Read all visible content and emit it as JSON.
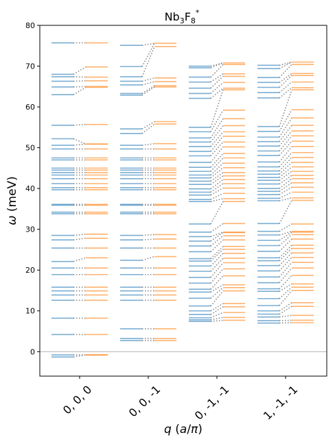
{
  "chart_data": {
    "type": "scatter",
    "title": "Nb3F8*",
    "title_parts": {
      "base": "Nb",
      "sub1": "3",
      "mid": "F",
      "sub2": "8",
      "sup": "*"
    },
    "xlabel": "q (a/π)",
    "xlabel_parts": {
      "q": "q",
      "open": " (",
      "a": "a",
      "slash": "/",
      "pi": "π",
      "close": ")"
    },
    "ylabel": "ω (meV)",
    "ylabel_parts": {
      "omega": "ω",
      "unit": " (meV)"
    },
    "ylim": [
      -6,
      80
    ],
    "yticks": [
      0,
      10,
      20,
      30,
      40,
      50,
      60,
      70,
      80
    ],
    "categories": [
      "0, 0, 0",
      "0, 0, -1",
      "0, -1, -1",
      "1, -1, -1"
    ],
    "zero_line": 0,
    "grid": false,
    "colors": {
      "left": "#1f77b4",
      "right": "#ff7f0e",
      "connector": "#888888",
      "zeroline": "#999999"
    },
    "series": [
      {
        "values": [
          -1.3,
          -0.8,
          4.2,
          8.2,
          12.6,
          13.9,
          14.9,
          15.8,
          18.9,
          20.5,
          22.1,
          25.4,
          27.4,
          28.5,
          33.8,
          34.2,
          35.9,
          36.1,
          39.7,
          40.2,
          41.2,
          42.4,
          43.3,
          43.9,
          44.5,
          45.0,
          47.0,
          47.5,
          49.7,
          50.6,
          52.2,
          55.5,
          63.0,
          64.9,
          66.3,
          67.4,
          68.0,
          75.7
        ]
      },
      {
        "values": [
          2.7,
          3.2,
          5.6,
          12.6,
          13.9,
          14.9,
          15.8,
          18.9,
          20.5,
          22.4,
          25.4,
          27.4,
          28.5,
          33.8,
          34.2,
          35.9,
          36.1,
          39.7,
          40.2,
          41.2,
          42.4,
          43.3,
          43.9,
          44.5,
          45.0,
          47.0,
          47.5,
          49.7,
          50.6,
          53.5,
          54.6,
          62.9,
          63.3,
          65.4,
          66.3,
          67.4,
          69.9,
          75.1
        ]
      },
      {
        "values": [
          7.4,
          7.8,
          8.3,
          9.1,
          10.0,
          11.2,
          13.1,
          14.6,
          15.3,
          16.8,
          18.2,
          19.7,
          21.0,
          22.2,
          22.8,
          24.5,
          25.9,
          27.1,
          28.2,
          29.3,
          31.3,
          36.8,
          37.3,
          38.4,
          39.1,
          39.9,
          41.0,
          41.8,
          42.6,
          43.3,
          44.2,
          45.2,
          46.4,
          48.0,
          49.1,
          50.3,
          51.4,
          52.4,
          53.9,
          55.0,
          62.1,
          63.3,
          64.6,
          66.1,
          67.3,
          69.6,
          70.0
        ]
      },
      {
        "values": [
          7.0,
          7.6,
          8.5,
          9.2,
          10.0,
          11.3,
          13.0,
          14.8,
          15.4,
          16.9,
          18.3,
          19.8,
          21.1,
          22.3,
          23.0,
          24.6,
          26.0,
          27.3,
          28.6,
          29.5,
          31.4,
          37.0,
          37.6,
          38.5,
          39.3,
          40.0,
          41.1,
          42.0,
          42.7,
          43.5,
          44.3,
          45.3,
          46.5,
          48.1,
          49.2,
          50.4,
          51.5,
          52.6,
          54.0,
          55.2,
          62.2,
          63.5,
          64.8,
          66.0,
          67.2,
          69.4,
          70.2
        ]
      }
    ],
    "series_right": [
      {
        "values": [
          -0.8,
          -0.8,
          4.2,
          8.2,
          12.6,
          13.9,
          14.9,
          15.8,
          18.9,
          20.5,
          23.0,
          25.4,
          27.8,
          28.8,
          33.8,
          34.2,
          35.9,
          36.1,
          39.7,
          40.2,
          41.2,
          42.4,
          43.3,
          43.9,
          44.5,
          45.0,
          47.0,
          47.5,
          49.7,
          50.9,
          50.9,
          55.7,
          64.8,
          65.0,
          66.4,
          67.3,
          69.8,
          75.7
        ]
      },
      {
        "values": [
          2.7,
          3.2,
          5.6,
          12.6,
          13.9,
          14.9,
          15.8,
          18.9,
          20.5,
          23.3,
          25.4,
          27.6,
          28.7,
          33.8,
          34.2,
          35.9,
          36.1,
          39.7,
          40.2,
          41.2,
          42.4,
          43.3,
          43.9,
          44.5,
          45.0,
          47.0,
          47.5,
          49.7,
          51.0,
          55.8,
          56.4,
          64.9,
          65.2,
          66.2,
          67.1,
          74.8,
          75.6
        ]
      },
      {
        "values": [
          7.7,
          8.4,
          9.6,
          11.0,
          11.8,
          14.9,
          15.7,
          16.4,
          18.6,
          20.3,
          21.8,
          22.9,
          24.1,
          25.1,
          25.8,
          27.4,
          28.4,
          29.2,
          29.3,
          31.4,
          36.8,
          37.5,
          38.8,
          40.1,
          41.2,
          42.2,
          43.1,
          43.9,
          45.1,
          46.2,
          47.5,
          48.6,
          50.2,
          51.4,
          52.8,
          53.9,
          55.4,
          57.1,
          59.2,
          64.2,
          64.6,
          66.0,
          67.5,
          68.1,
          70.4,
          70.8
        ]
      },
      {
        "values": [
          7.1,
          7.7,
          8.9,
          11.1,
          12.0,
          15.0,
          15.8,
          16.6,
          18.7,
          20.5,
          21.9,
          23.1,
          24.2,
          25.3,
          26.1,
          27.6,
          28.7,
          29.3,
          29.5,
          31.3,
          37.1,
          37.7,
          39.1,
          40.3,
          41.4,
          42.4,
          43.2,
          44.2,
          45.3,
          46.4,
          47.6,
          48.8,
          50.3,
          51.6,
          52.9,
          54.1,
          55.5,
          57.3,
          59.3,
          64.2,
          64.7,
          66.1,
          67.7,
          68.2,
          70.4,
          71.0
        ]
      }
    ]
  }
}
